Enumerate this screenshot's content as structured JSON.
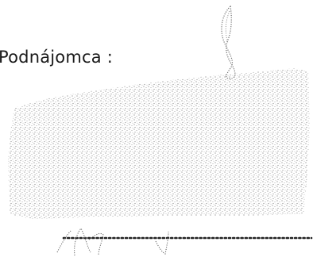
{
  "document": {
    "signer_label": "Podnájomca :"
  },
  "colors": {
    "text": "#1a1a1a",
    "stipple": "#8a8a8a",
    "signature_ink": "#6e6e6e",
    "dotted_line": "#222222"
  }
}
